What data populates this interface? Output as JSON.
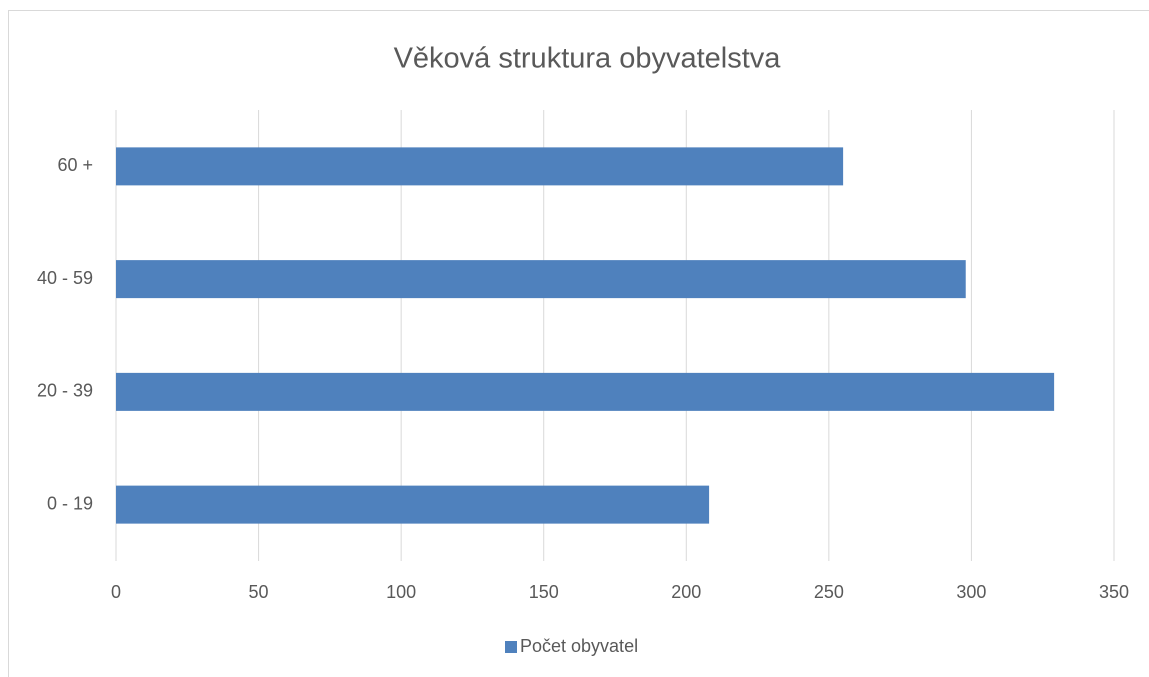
{
  "chart_data": {
    "type": "bar",
    "orientation": "horizontal",
    "title": "Věková struktura obyvatelstva",
    "categories": [
      "0 - 19",
      "20 - 39",
      "40 - 59",
      "60 +"
    ],
    "series": [
      {
        "name": "Počet obyvatel",
        "color": "#4f81bd",
        "values": [
          208,
          329,
          298,
          255
        ]
      }
    ],
    "xlim": [
      0,
      350
    ],
    "xticks": [
      0,
      50,
      100,
      150,
      200,
      250,
      300,
      350
    ],
    "grid": true,
    "legend": "bottom"
  }
}
